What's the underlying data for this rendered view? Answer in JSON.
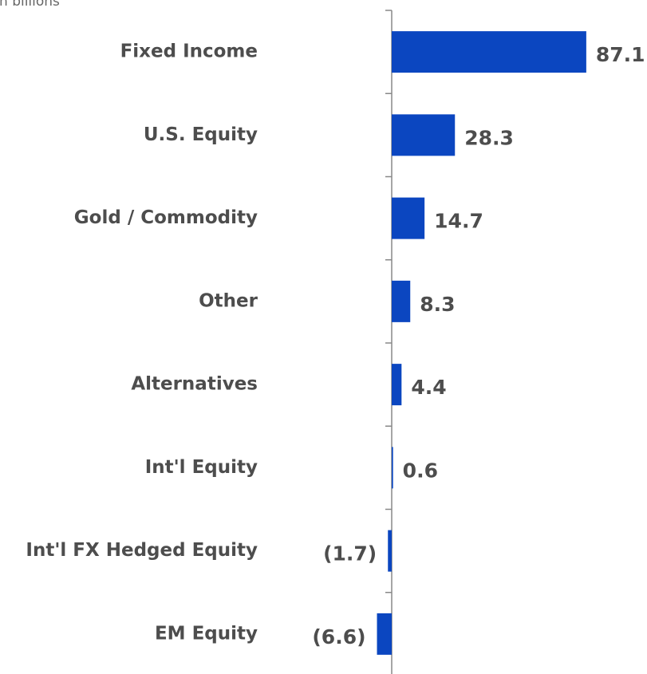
{
  "chart_data": {
    "type": "bar",
    "orientation": "horizontal",
    "subtitle": "In billions",
    "categories": [
      "Fixed Income",
      "U.S. Equity",
      "Gold / Commodity",
      "Other",
      "Alternatives",
      "Int'l Equity",
      "Int'l FX Hedged Equity",
      "EM Equity"
    ],
    "values": [
      87.1,
      28.3,
      14.7,
      8.3,
      4.4,
      0.6,
      -1.7,
      -6.6
    ],
    "value_labels": [
      "87.1",
      "28.3",
      "14.7",
      "8.3",
      "4.4",
      "0.6",
      "(1.7)",
      "(6.6)"
    ],
    "color": "#0b46c0",
    "xlim": [
      -10,
      100
    ]
  }
}
